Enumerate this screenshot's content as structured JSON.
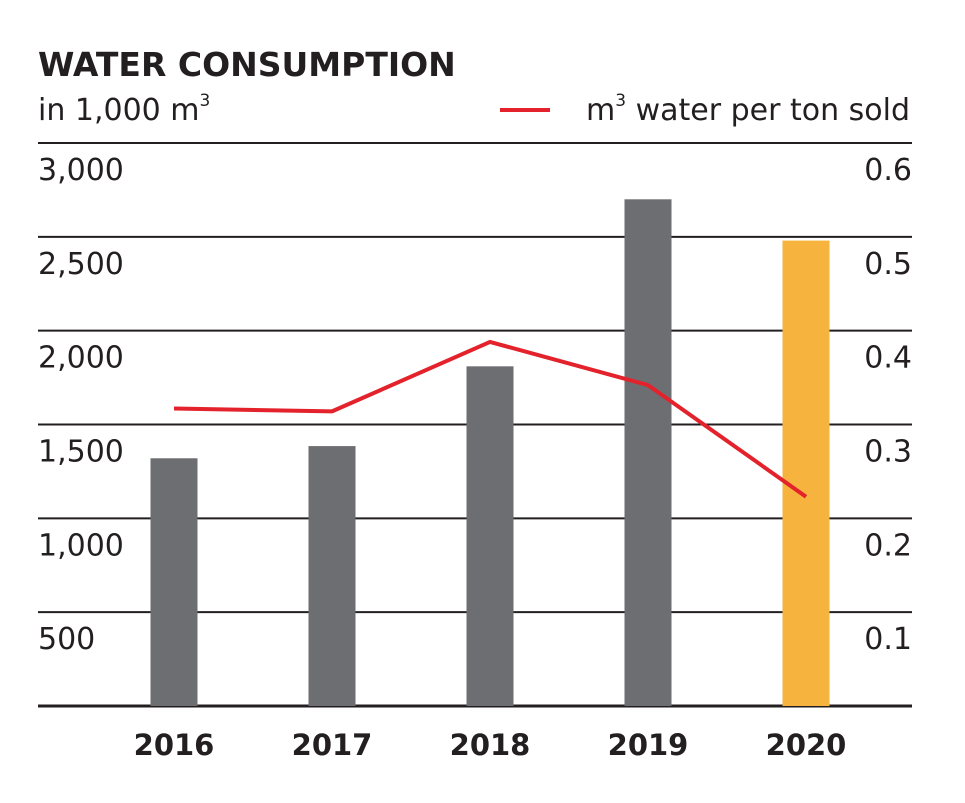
{
  "chart_data": {
    "type": "bar",
    "title": "WATER CONSUMPTION",
    "ylabel_left": "in 1,000 m",
    "ylabel_left_sup": "3",
    "legend": {
      "label_prefix": "m",
      "label_sup": "3",
      "label_rest": " water per ton sold",
      "position": "top-right"
    },
    "categories": [
      "2016",
      "2017",
      "2018",
      "2019",
      "2020"
    ],
    "series": [
      {
        "name": "Water consumption (1,000 m3)",
        "type": "bar",
        "axis": "left",
        "values": [
          1320,
          1385,
          1810,
          2700,
          2480
        ],
        "colors": [
          "#6d6e71",
          "#6d6e71",
          "#6d6e71",
          "#6d6e71",
          "#f6b33d"
        ]
      },
      {
        "name": "m3 water per ton sold",
        "type": "line",
        "axis": "right",
        "values": [
          0.317,
          0.314,
          0.388,
          0.342,
          0.223
        ],
        "color": "#e3222b"
      }
    ],
    "left_axis": {
      "ylim": [
        0,
        3000
      ],
      "ticks": [
        500,
        1000,
        1500,
        2000,
        2500,
        3000
      ],
      "tick_labels": [
        "500",
        "1,000",
        "1,500",
        "2,000",
        "2,500",
        "3,000"
      ]
    },
    "right_axis": {
      "ylim": [
        0,
        0.6
      ],
      "ticks": [
        0.1,
        0.2,
        0.3,
        0.4,
        0.5,
        0.6
      ],
      "tick_labels": [
        "0.1",
        "0.2",
        "0.3",
        "0.4",
        "0.5",
        "0.6"
      ]
    },
    "grid": true
  }
}
